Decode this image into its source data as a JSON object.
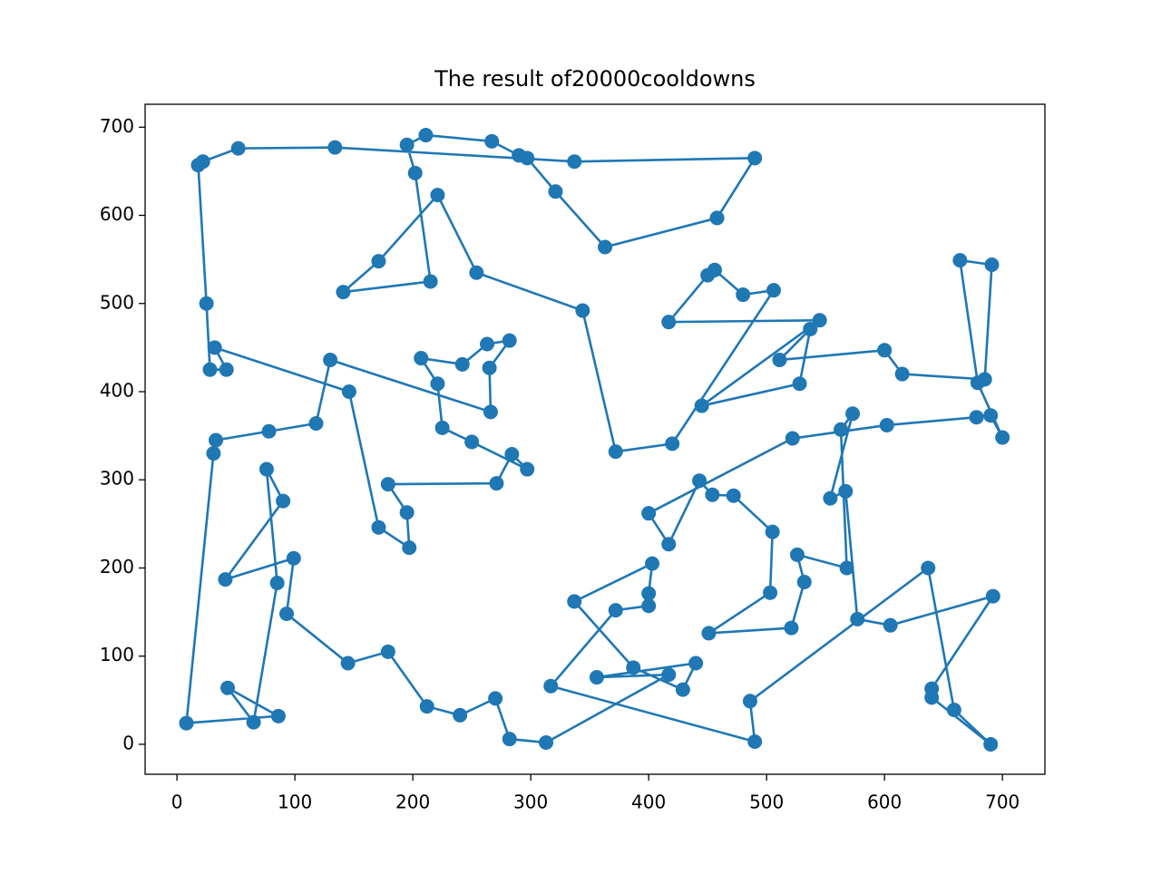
{
  "chart_data": {
    "type": "line",
    "title": "The result of20000cooldowns",
    "color": "#1f77b4",
    "markers": true,
    "xlim": [
      -27,
      736
    ],
    "ylim": [
      -34,
      726
    ],
    "xticks": [
      0,
      100,
      200,
      300,
      400,
      500,
      600,
      700
    ],
    "yticks": [
      0,
      100,
      200,
      300,
      400,
      500,
      600,
      700
    ],
    "x": [
      8,
      86,
      43,
      65,
      85,
      76,
      90,
      41,
      99,
      93,
      145,
      179,
      212,
      240,
      270,
      282,
      313,
      417,
      356,
      440,
      429,
      387,
      337,
      403,
      400,
      400,
      372,
      317,
      490,
      486,
      637,
      659,
      690,
      640,
      640,
      692,
      605,
      577,
      567,
      554,
      573,
      563,
      568,
      526,
      532,
      521,
      451,
      503,
      505,
      472,
      454,
      443,
      417,
      400,
      522,
      602,
      678,
      690,
      700,
      679,
      664,
      691,
      685,
      615,
      600,
      511,
      537,
      528,
      445,
      545,
      417,
      450,
      456,
      480,
      506,
      420,
      372,
      344,
      254,
      221,
      171,
      141,
      215,
      202,
      195,
      211,
      267,
      290,
      297,
      321,
      363,
      458,
      490,
      337,
      134,
      52,
      22,
      18,
      25,
      28,
      42,
      32,
      146,
      171,
      197,
      195,
      179,
      271,
      284,
      297,
      250,
      225,
      221,
      207,
      242,
      263,
      282,
      265,
      266,
      130,
      118,
      78,
      33,
      31,
      8
    ],
    "y": [
      24,
      32,
      64,
      25,
      183,
      312,
      276,
      187,
      211,
      148,
      92,
      105,
      43,
      33,
      52,
      6,
      2,
      79,
      76,
      92,
      62,
      87,
      162,
      205,
      171,
      157,
      152,
      66,
      3,
      49,
      200,
      39,
      0,
      53,
      63,
      168,
      135,
      142,
      287,
      279,
      375,
      357,
      200,
      215,
      184,
      132,
      126,
      172,
      241,
      282,
      283,
      299,
      227,
      262,
      347,
      362,
      371,
      373,
      348,
      410,
      549,
      544,
      414,
      420,
      447,
      436,
      471,
      409,
      384,
      481,
      479,
      532,
      538,
      510,
      515,
      341,
      332,
      492,
      535,
      623,
      548,
      513,
      525,
      648,
      680,
      691,
      684,
      668,
      665,
      627,
      564,
      597,
      665,
      661,
      677,
      676,
      661,
      657,
      500,
      425,
      425,
      450,
      400,
      246,
      223,
      263,
      295,
      296,
      329,
      312,
      343,
      359,
      409,
      438,
      431,
      454,
      458,
      427,
      377,
      436,
      364,
      355,
      345,
      330,
      24
    ]
  }
}
